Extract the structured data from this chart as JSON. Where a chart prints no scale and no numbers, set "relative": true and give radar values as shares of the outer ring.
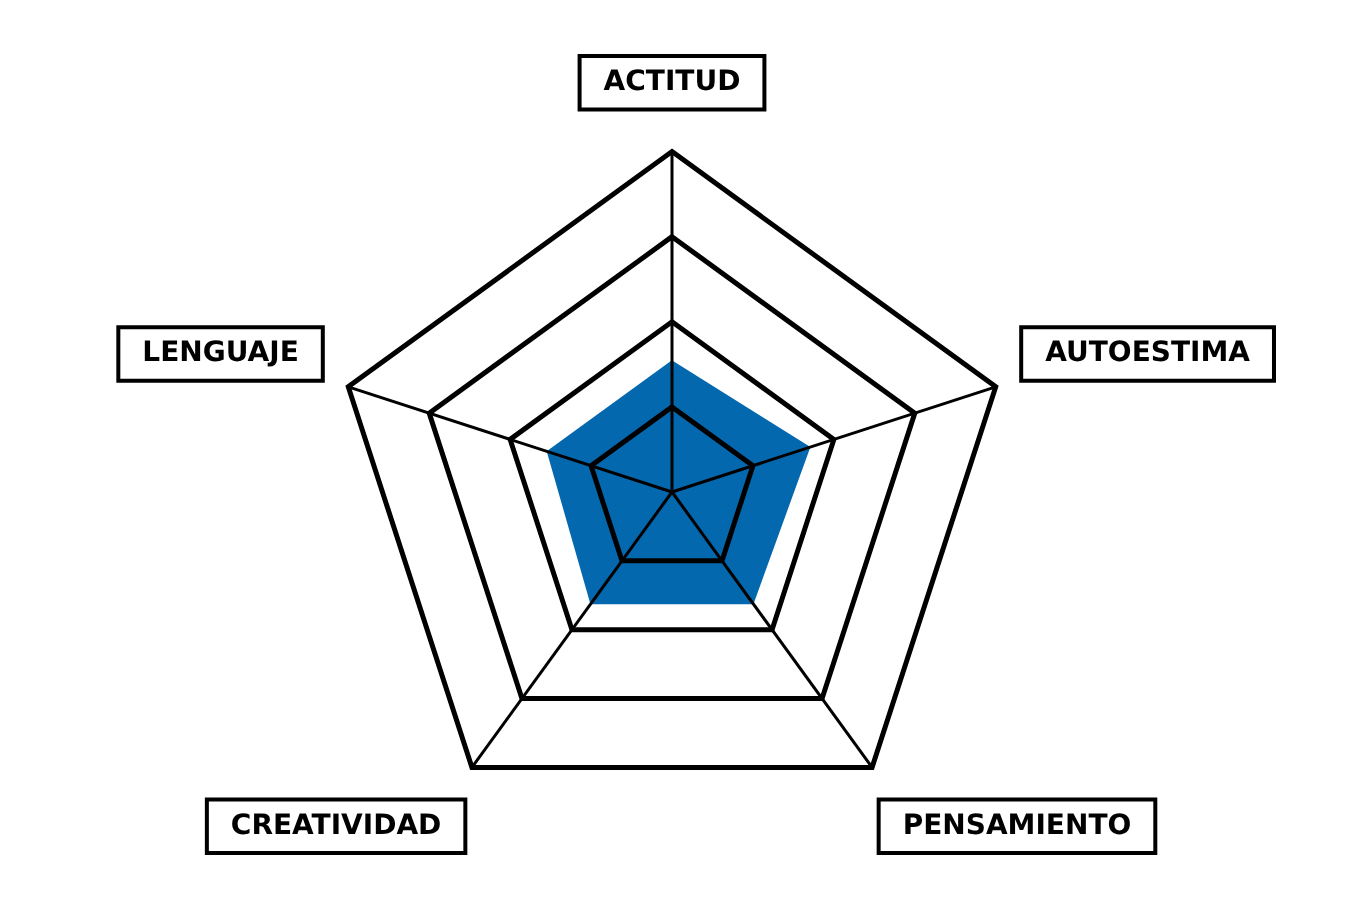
{
  "chart_data": {
    "type": "radar",
    "relative": true,
    "categories": [
      "ACTITUD",
      "AUTOESTIMA",
      "PENSAMIENTO",
      "CREATIVIDAD",
      "LENGUAJE"
    ],
    "series": [
      {
        "color": "#0468ae",
        "values": [
          0.38,
          0.42,
          0.4,
          0.4,
          0.38
        ]
      }
    ],
    "legend": false
  }
}
